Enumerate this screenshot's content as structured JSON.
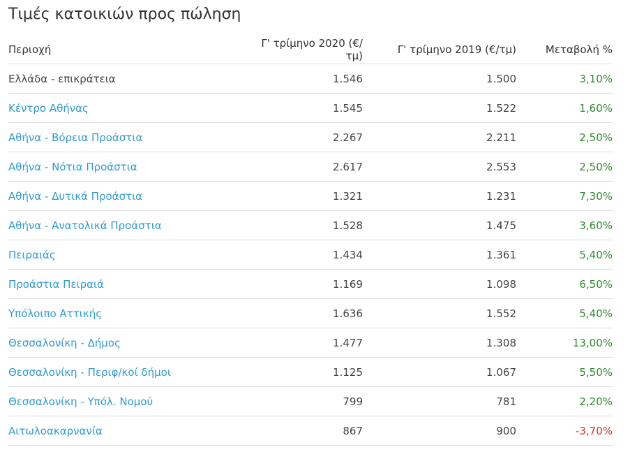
{
  "title": "Τιμές κατοικιών προς πώληση",
  "table": {
    "header": [
      "Περιοχή",
      "Γ' τρίμηνο 2020 (€/τμ)",
      "Γ' τρίμηνο 2019 (€/τμ)",
      "Μεταβολή %"
    ],
    "rows": [
      [
        "Ελλάδα - επικράτεια",
        "1.546",
        "1.500",
        "3,10%"
      ],
      [
        "Κέντρο Αθήνας",
        "1.545",
        "1.522",
        "1,60%"
      ],
      [
        "Αθήνα - Βόρεια Προάστια",
        "2.267",
        "2.211",
        "2,50%"
      ],
      [
        "Αθήνα - Νότια Προάστια",
        "2.617",
        "2.553",
        "2,50%"
      ],
      [
        "Αθήνα - Δυτικά Προάστια",
        "1.321",
        "1.231",
        "7,30%"
      ],
      [
        "Αθήνα - Ανατολικά Προάστια",
        "1.528",
        "1.475",
        "3,60%"
      ],
      [
        "Πειραιάς",
        "1.434",
        "1.361",
        "5,40%"
      ],
      [
        "Προάστια Πειραιά",
        "1.169",
        "1.098",
        "6,50%"
      ],
      [
        "Υπόλοιπο Αττικής",
        "1.636",
        "1.552",
        "5,40%"
      ],
      [
        "Θεσσαλονίκη - Δήμος",
        "1.477",
        "1.308",
        "13,00%"
      ],
      [
        "Θεσσαλονίκη - Περιφ/κοί δήμοι",
        "1.125",
        "1.067",
        "5,50%"
      ],
      [
        "Θεσσαλονίκη - Υπόλ. Νομού",
        "799",
        "781",
        "2,20%"
      ],
      [
        "Αιτωλοακαρνανία",
        "867",
        "900",
        "-3,70%"
      ]
    ]
  }
}
